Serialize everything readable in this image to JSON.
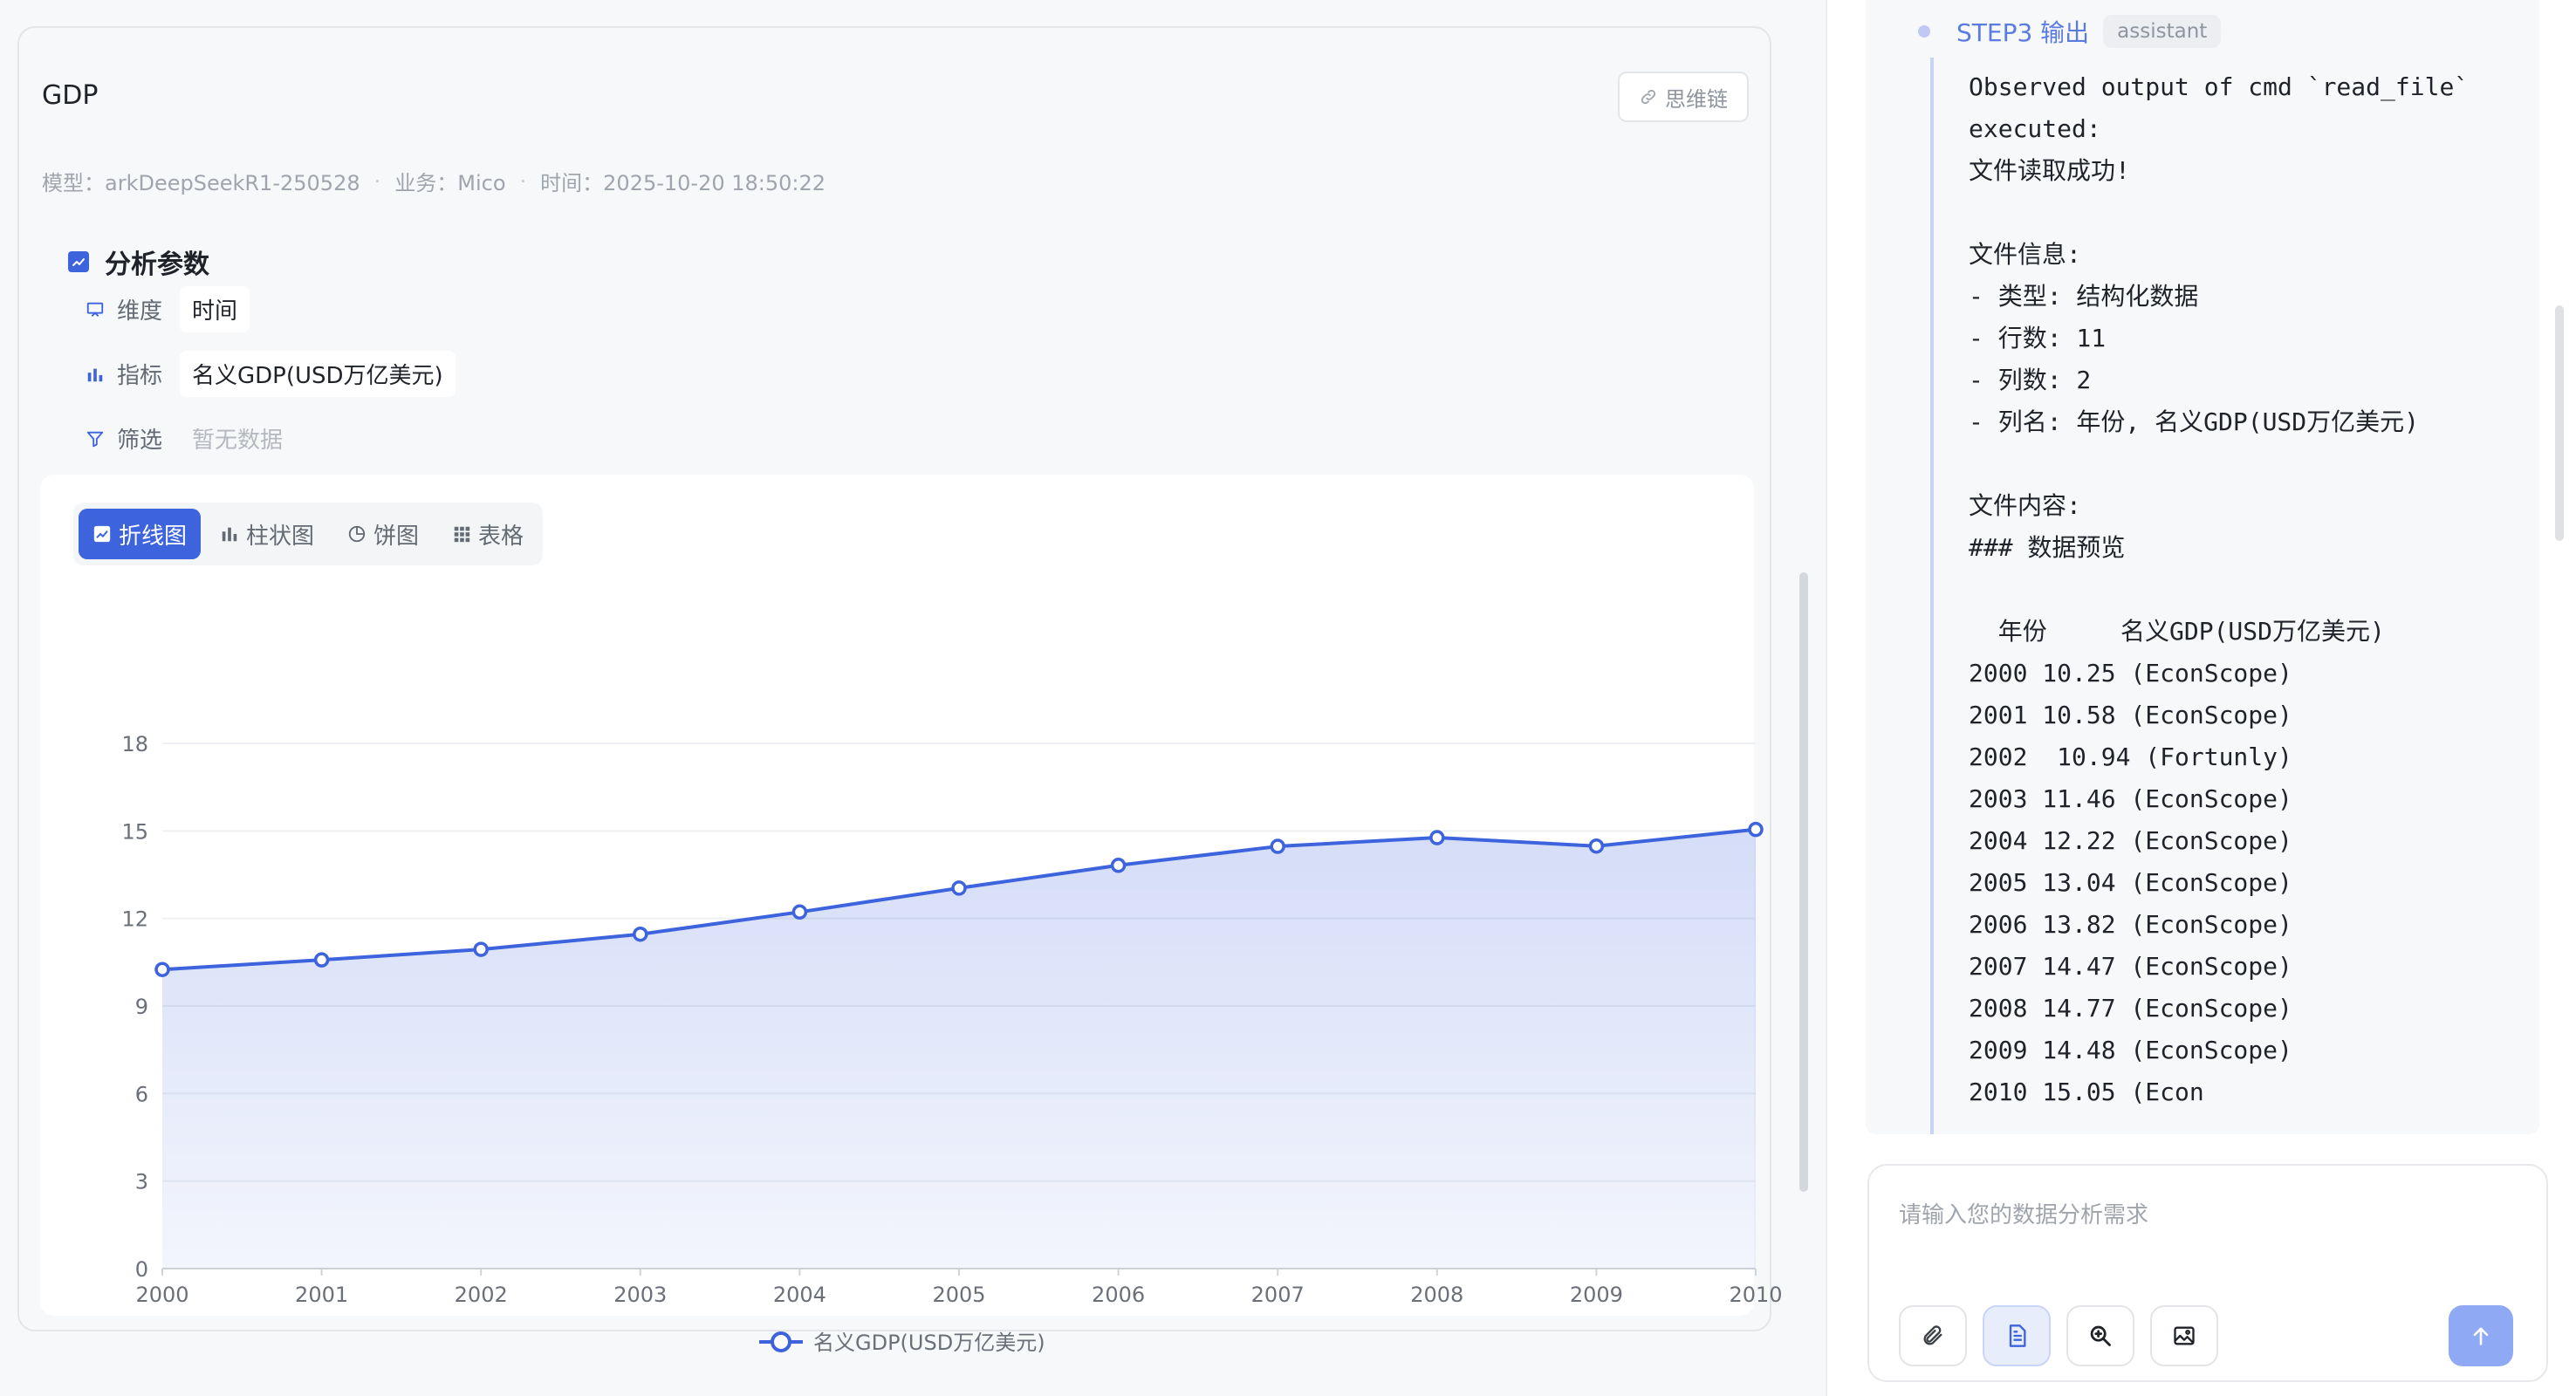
{
  "card": {
    "title": "GDP",
    "chain_label": "思维链",
    "meta": {
      "model": "模型：arkDeepSeekR1-250528",
      "business": "业务：Mico",
      "time": "时间：2025-10-20 18:50:22"
    }
  },
  "params": {
    "section_title": "分析参数",
    "dimension_label": "维度",
    "dimension_value": "时间",
    "metric_label": "指标",
    "metric_value": "名义GDP(USD万亿美元)",
    "filter_label": "筛选",
    "filter_value": "暂无数据"
  },
  "tabs": [
    {
      "label": "折线图",
      "icon": "line-chart-icon",
      "active": true
    },
    {
      "label": "柱状图",
      "icon": "bar-chart-icon",
      "active": false
    },
    {
      "label": "饼图",
      "icon": "pie-chart-icon",
      "active": false
    },
    {
      "label": "表格",
      "icon": "table-icon",
      "active": false
    }
  ],
  "chart_data": {
    "type": "area",
    "categories": [
      "2000",
      "2001",
      "2002",
      "2003",
      "2004",
      "2005",
      "2006",
      "2007",
      "2008",
      "2009",
      "2010"
    ],
    "series": [
      {
        "name": "名义GDP(USD万亿美元)",
        "values": [
          10.25,
          10.58,
          10.94,
          11.46,
          12.22,
          13.04,
          13.82,
          14.47,
          14.77,
          14.48,
          15.05
        ]
      }
    ],
    "ylim": [
      0,
      18
    ],
    "yticks": [
      0,
      3,
      6,
      9,
      12,
      15,
      18
    ],
    "grid": true,
    "legend": "bottom-center",
    "line_color": "#3d63dd"
  },
  "step": {
    "title": "STEP3 输出",
    "badge": "assistant",
    "lines": [
      "Observed output of cmd `read_file`",
      "executed:",
      "文件读取成功!",
      "",
      "文件信息:",
      "- 类型: 结构化数据",
      "- 行数: 11",
      "- 列数: 2",
      "- 列名: 年份, 名义GDP(USD万亿美元)",
      "",
      "文件内容:",
      "### 数据预览",
      "",
      "  年份     名义GDP(USD万亿美元)",
      "2000 10.25 (EconScope)",
      "2001 10.58 (EconScope)",
      "2002  10.94 (Fortunly)",
      "2003 11.46 (EconScope)",
      "2004 12.22 (EconScope)",
      "2005 13.04 (EconScope)",
      "2006 13.82 (EconScope)",
      "2007 14.47 (EconScope)",
      "2008 14.77 (EconScope)",
      "2009 14.48 (EconScope)",
      "2010 15.05 (Econ"
    ]
  },
  "input": {
    "placeholder": "请输入您的数据分析需求",
    "tools": [
      "attachment-icon",
      "document-icon",
      "zoom-search-icon",
      "image-icon"
    ],
    "send_icon": "arrow-up-icon"
  }
}
